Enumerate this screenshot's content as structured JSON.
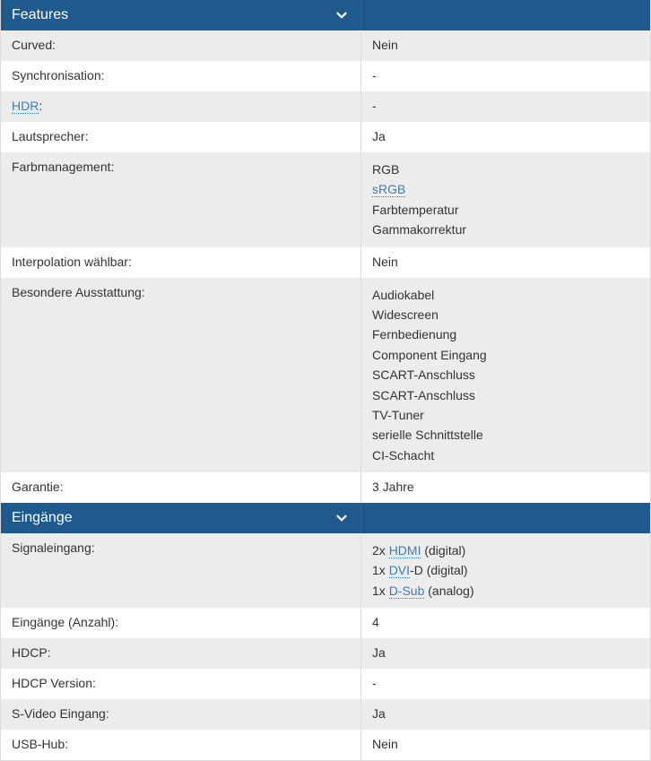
{
  "colors": {
    "header_bg": "#1e5a8e",
    "header_fg": "#ffffff",
    "row_even": "#ececec",
    "row_odd": "#ffffff",
    "link": "#3a7fb8",
    "border": "#dcdcdc"
  },
  "sections": [
    {
      "title": "Features",
      "rows": [
        {
          "label": "Curved:",
          "value": [
            {
              "t": "Nein"
            }
          ]
        },
        {
          "label": "Synchronisation:",
          "value": [
            {
              "t": "-"
            }
          ]
        },
        {
          "label_parts": [
            {
              "t": "HDR",
              "link": true
            },
            {
              "t": ":"
            }
          ],
          "value": [
            {
              "t": "-"
            }
          ]
        },
        {
          "label": "Lautsprecher:",
          "value": [
            {
              "t": "Ja"
            }
          ]
        },
        {
          "label": "Farbmanagement:",
          "value_lines": [
            [
              {
                "t": "RGB"
              }
            ],
            [
              {
                "t": "sRGB",
                "link": true
              }
            ],
            [
              {
                "t": "Farbtemperatur"
              }
            ],
            [
              {
                "t": "Gammakorrektur"
              }
            ]
          ]
        },
        {
          "label": "Interpolation wählbar:",
          "value": [
            {
              "t": "Nein"
            }
          ]
        },
        {
          "label": "Besondere Ausstattung:",
          "value_lines": [
            [
              {
                "t": "Audiokabel"
              }
            ],
            [
              {
                "t": "Widescreen"
              }
            ],
            [
              {
                "t": "Fernbedienung"
              }
            ],
            [
              {
                "t": "Component Eingang"
              }
            ],
            [
              {
                "t": "SCART-Anschluss"
              }
            ],
            [
              {
                "t": "SCART-Anschluss"
              }
            ],
            [
              {
                "t": "TV-Tuner"
              }
            ],
            [
              {
                "t": "serielle Schnittstelle"
              }
            ],
            [
              {
                "t": "CI-Schacht"
              }
            ]
          ]
        },
        {
          "label": "Garantie:",
          "value": [
            {
              "t": "3 Jahre"
            }
          ]
        }
      ]
    },
    {
      "title": "Eingänge",
      "rows": [
        {
          "label": "Signaleingang:",
          "value_lines": [
            [
              {
                "t": "2x "
              },
              {
                "t": "HDMI",
                "link": true
              },
              {
                "t": " (digital)"
              }
            ],
            [
              {
                "t": "1x "
              },
              {
                "t": "DVI",
                "link": true
              },
              {
                "t": "-D (digital)"
              }
            ],
            [
              {
                "t": "1x "
              },
              {
                "t": "D-Sub",
                "link": true
              },
              {
                "t": " (analog)"
              }
            ]
          ]
        },
        {
          "label": "Eingänge (Anzahl):",
          "value": [
            {
              "t": "4"
            }
          ]
        },
        {
          "label": "HDCP:",
          "value": [
            {
              "t": "Ja"
            }
          ]
        },
        {
          "label": "HDCP Version:",
          "value": [
            {
              "t": "-"
            }
          ]
        },
        {
          "label": "S-Video Eingang:",
          "value": [
            {
              "t": "Ja"
            }
          ]
        },
        {
          "label": "USB-Hub:",
          "value": [
            {
              "t": "Nein"
            }
          ]
        }
      ]
    }
  ]
}
